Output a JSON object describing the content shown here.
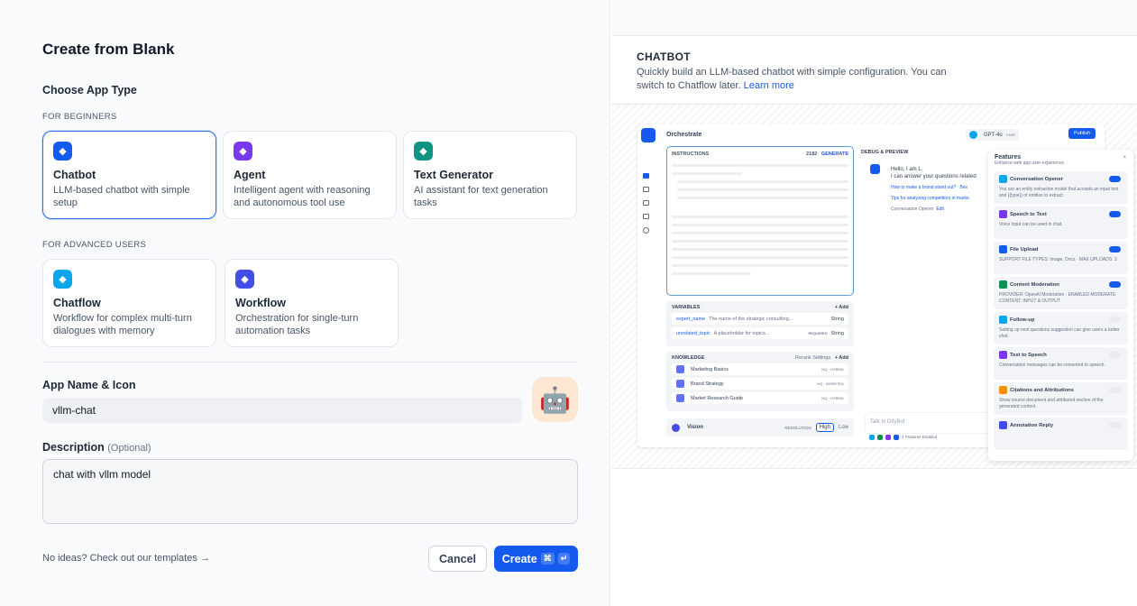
{
  "title": "Create from Blank",
  "choose_label": "Choose App Type",
  "beginners_label": "FOR BEGINNERS",
  "advanced_label": "FOR ADVANCED USERS",
  "app_types": [
    {
      "name": "Chatbot",
      "desc": "LLM-based chatbot with simple setup",
      "color": "#155aef",
      "icon": "chatbot-icon",
      "selected": true
    },
    {
      "name": "Agent",
      "desc": "Intelligent agent with reasoning and autonomous tool use",
      "color": "#7839ee",
      "icon": "agent-icon"
    },
    {
      "name": "Text Generator",
      "desc": "AI assistant for text generation tasks",
      "color": "#0e9384",
      "icon": "text-generator-icon"
    },
    {
      "name": "Chatflow",
      "desc": "Workflow for complex multi-turn dialogues with memory",
      "color": "#0ba5ec",
      "icon": "chatflow-icon"
    },
    {
      "name": "Workflow",
      "desc": "Orchestration for single-turn automation tasks",
      "color": "#444ce7",
      "icon": "workflow-icon"
    }
  ],
  "name_label": "App Name & Icon",
  "name_value": "vllm-chat",
  "app_icon": "🤖",
  "desc_label": "Description",
  "desc_optional": "(Optional)",
  "desc_value": "chat with vllm model",
  "templates_link": "No ideas? Check out our templates →",
  "cancel": "Cancel",
  "create": "Create",
  "create_kbd": [
    "⌘",
    "↵"
  ],
  "preview": {
    "title": "CHATBOT",
    "desc": "Quickly build an LLM-based chatbot with simple configuration. You can switch to Chatflow later.",
    "learn_more": "Learn more",
    "orchestrate": "Orchestrate",
    "instructions": "INSTRUCTIONS",
    "count": "2182",
    "generate": "GENERATE",
    "model": "GPT-4o",
    "model_tag": "CHAT",
    "publish": "Publish",
    "variables": "VARIABLES",
    "add": "+ Add",
    "vars": [
      {
        "name": "expert_name",
        "desc": "The name of the strategic consulting...",
        "type": "String"
      },
      {
        "name": "unrelated_topic",
        "desc": "A placeholder for topics...",
        "required": "REQUIRED",
        "type": "String"
      }
    ],
    "knowledge": "KNOWLEDGE",
    "rerank": "Rerank Settings",
    "kb": [
      {
        "name": "Marketing Basics",
        "tag": "HQ · HYBRID"
      },
      {
        "name": "Brand Strategy",
        "tag": "HQ · INVERTED"
      },
      {
        "name": "Market Research Guide",
        "tag": "HQ · HYBRID"
      }
    ],
    "vision": "Vision",
    "resolution": "RESOLUTION",
    "high": "High",
    "low": "Low",
    "debug": "DEBUG & PREVIEW",
    "hello": "Hello, I am L.",
    "hello2": "I can answer your questions related",
    "sugg1": "How to make a brand stand out?",
    "sugg1b": "Bes",
    "sugg2": "Tips for analyzing competitors in marke",
    "opener": "Conversation Opener",
    "edit": "Edit",
    "talk": "Talk to DifyBot",
    "enabled": "4 Features Enabled",
    "features_title": "Features",
    "features_sub": "Enhance web app user experience",
    "features": [
      {
        "name": "Conversation Opener",
        "desc": "You are an entity extraction model that accepts an input text and {{type}} of entities to extract.",
        "on": true,
        "color": "#0ba5ec"
      },
      {
        "name": "Speech to Text",
        "desc": "Voice input can be used in chat.",
        "on": true,
        "color": "#7839ee"
      },
      {
        "name": "File Upload",
        "desc": "SUPPORT FILE TYPES: Image, Docs · MAX UPLOADS: 3",
        "on": true,
        "color": "#155aef"
      },
      {
        "name": "Content Moderation",
        "desc": "PROVIDER: OpenAI Moderation · ENABLED MODERATE CONTENT: INPUT & OUTPUT",
        "on": true,
        "color": "#099250"
      },
      {
        "name": "Follow-up",
        "desc": "Setting up next questions suggestion can give users a better chat.",
        "on": false,
        "color": "#0ba5ec"
      },
      {
        "name": "Text to Speech",
        "desc": "Conversation messages can be converted to speech.",
        "on": false,
        "color": "#7839ee"
      },
      {
        "name": "Citations and Attributions",
        "desc": "Show source document and attributed section of the generated content.",
        "on": false,
        "color": "#f79009"
      },
      {
        "name": "Annotation Reply",
        "desc": "",
        "on": false,
        "color": "#444ce7"
      }
    ]
  }
}
